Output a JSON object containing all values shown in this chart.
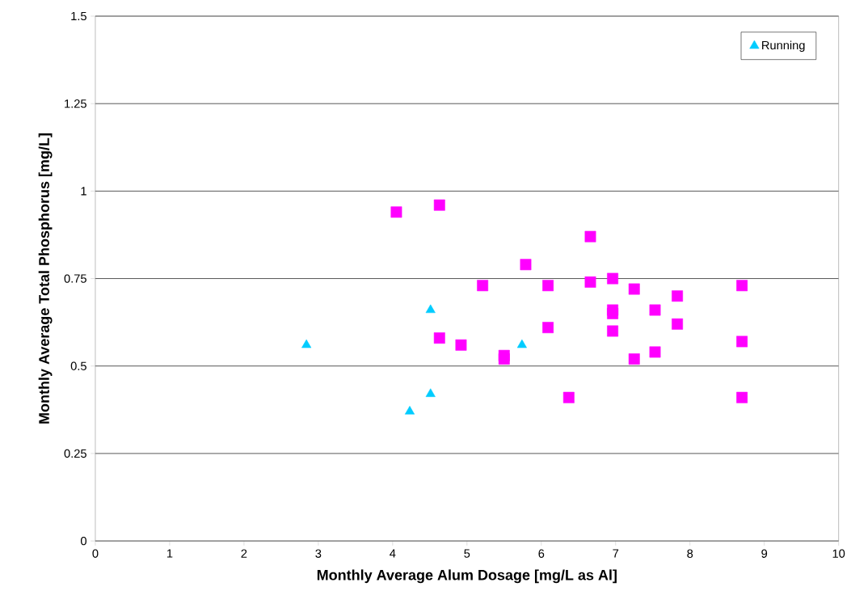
{
  "chart_data": {
    "type": "scatter",
    "xlabel": "Monthly Average Alum Dosage [mg/L as Al]",
    "ylabel": "Monthly Average Total Phosphorus [mg/L]",
    "xlim": [
      0,
      10
    ],
    "xticks": [
      0,
      1,
      2,
      3,
      4,
      5,
      6,
      7,
      8,
      9,
      10
    ],
    "ylim": [
      0,
      1.5
    ],
    "yticks": [
      0,
      0.25,
      0.5,
      0.75,
      1,
      1.25,
      1.5
    ],
    "grid": "y",
    "legend": "top right",
    "series": [
      {
        "name": "Running",
        "color": "#00ccff",
        "marker": "triangle",
        "x": [
          2.84,
          4.23,
          4.51,
          4.51,
          5.74
        ],
        "values": [
          0.56,
          0.37,
          0.66,
          0.42,
          0.56
        ]
      },
      {
        "color": "#ff00ff",
        "marker": "square",
        "x": [
          4.05,
          4.63,
          4.63,
          4.92,
          5.21,
          5.5,
          5.5,
          5.79,
          6.09,
          6.09,
          6.37,
          6.66,
          6.66,
          6.96,
          6.96,
          6.96,
          6.96,
          7.25,
          7.25,
          7.53,
          7.53,
          7.83,
          7.83,
          8.7,
          8.7,
          8.7
        ],
        "values": [
          0.94,
          0.96,
          0.58,
          0.56,
          0.73,
          0.53,
          0.52,
          0.79,
          0.73,
          0.61,
          0.41,
          0.87,
          0.74,
          0.75,
          0.66,
          0.65,
          0.6,
          0.72,
          0.52,
          0.66,
          0.54,
          0.7,
          0.62,
          0.73,
          0.57,
          0.41
        ]
      }
    ]
  }
}
